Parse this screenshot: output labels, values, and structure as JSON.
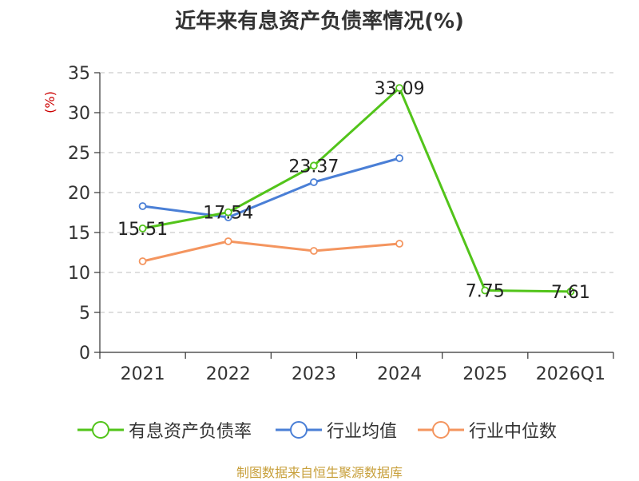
{
  "chart_data": {
    "type": "line",
    "title": "近年来有息资产负债率情况(%)",
    "ylabel": "(%)",
    "xlabel": "",
    "categories": [
      "2021",
      "2022",
      "2023",
      "2024",
      "2025",
      "2026Q1"
    ],
    "ylim": [
      0,
      35
    ],
    "yticks": [
      0,
      5,
      10,
      15,
      20,
      25,
      30,
      35
    ],
    "grid": true,
    "legend_position": "bottom",
    "series": [
      {
        "name": "有息资产负债率",
        "color": "#52c41a",
        "values": [
          15.51,
          17.54,
          23.37,
          33.09,
          7.75,
          7.61
        ],
        "labels": [
          "15.51",
          "17.54",
          "23.37",
          "33.09",
          "7.75",
          "7.61"
        ]
      },
      {
        "name": "行业均值",
        "color": "#4a7fd6",
        "values": [
          18.3,
          16.9,
          21.3,
          24.3,
          null,
          null
        ]
      },
      {
        "name": "行业中位数",
        "color": "#f4955f",
        "values": [
          11.4,
          13.9,
          12.7,
          13.6,
          null,
          null
        ]
      }
    ]
  },
  "source_text": "制图数据来自恒生聚源数据库"
}
